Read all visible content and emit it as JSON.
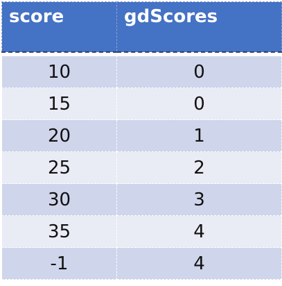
{
  "table": {
    "headers": [
      "score",
      "gdScores"
    ],
    "rows": [
      [
        "10",
        "0"
      ],
      [
        "15",
        "0"
      ],
      [
        "20",
        "1"
      ],
      [
        "25",
        "2"
      ],
      [
        "30",
        "3"
      ],
      [
        "35",
        "4"
      ],
      [
        "-1",
        "4"
      ]
    ]
  },
  "colors": {
    "header_bg": "#4472c4",
    "header_text": "#ffffff",
    "row_dark": "#cfd5ea",
    "row_light": "#e9ebf5"
  }
}
